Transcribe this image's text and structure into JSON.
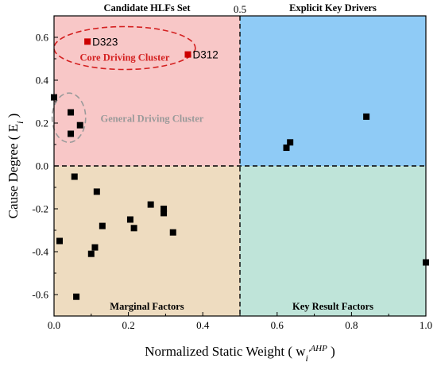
{
  "chart_data": {
    "type": "scatter",
    "xlabel": "Normalized Static Weight ( w",
    "xlabel_sub": "i",
    "xlabel_prime": "'",
    "xlabel_sup": "AHP",
    "xlabel_close": " )",
    "ylabel": "Cause Degree ( E",
    "ylabel_sub": "i",
    "ylabel_close": " )",
    "xlim": [
      0,
      1
    ],
    "ylim": [
      -0.7,
      0.7
    ],
    "x_ticks": [
      0,
      0.2,
      0.4,
      0.6,
      0.8,
      1
    ],
    "x_tick_labels": [
      "0.0",
      "0.2",
      "0.4",
      "0.6",
      "0.8",
      "1.0"
    ],
    "y_ticks": [
      -0.6,
      -0.4,
      -0.2,
      0,
      0.2,
      0.4,
      0.6
    ],
    "y_tick_labels": [
      "-0.6",
      "-0.4",
      "-0.2",
      "0.0",
      "0.2",
      "0.4",
      "0.6"
    ],
    "threshold_x": 0.5,
    "threshold_x_label": "0.5",
    "threshold_y": 0,
    "quadrants": [
      {
        "name": "top-left",
        "label": "Candidate HLFs Set",
        "label_position": "top",
        "color": "#f8c7c7"
      },
      {
        "name": "top-right",
        "label": "Explicit Key Drivers",
        "label_position": "top",
        "color": "#8fcbf6"
      },
      {
        "name": "bottom-left",
        "label": "Marginal Factors",
        "label_position": "bottom",
        "color": "#eedcc0"
      },
      {
        "name": "bottom-right",
        "label": "Key Result Factors",
        "label_position": "bottom",
        "color": "#bfe4d9"
      }
    ],
    "points": [
      {
        "x": 0.09,
        "y": 0.58,
        "label": "D323",
        "color": "#cc0000"
      },
      {
        "x": 0.36,
        "y": 0.52,
        "label": "D312",
        "color": "#cc0000"
      },
      {
        "x": 0.0,
        "y": 0.32
      },
      {
        "x": 0.045,
        "y": 0.25
      },
      {
        "x": 0.07,
        "y": 0.19
      },
      {
        "x": 0.045,
        "y": 0.15
      },
      {
        "x": 0.625,
        "y": 0.085
      },
      {
        "x": 0.635,
        "y": 0.11
      },
      {
        "x": 0.84,
        "y": 0.23
      },
      {
        "x": 0.055,
        "y": -0.05
      },
      {
        "x": 0.115,
        "y": -0.12
      },
      {
        "x": 0.26,
        "y": -0.18
      },
      {
        "x": 0.295,
        "y": -0.2
      },
      {
        "x": 0.295,
        "y": -0.22
      },
      {
        "x": 0.205,
        "y": -0.25
      },
      {
        "x": 0.13,
        "y": -0.28
      },
      {
        "x": 0.215,
        "y": -0.29
      },
      {
        "x": 0.32,
        "y": -0.31
      },
      {
        "x": 0.015,
        "y": -0.35
      },
      {
        "x": 0.11,
        "y": -0.38
      },
      {
        "x": 0.1,
        "y": -0.41
      },
      {
        "x": 0.06,
        "y": -0.61
      },
      {
        "x": 1.0,
        "y": -0.45
      }
    ],
    "clusters": [
      {
        "label": "Core Driving Cluster",
        "color": "#d42020",
        "cx": 0.19,
        "cy": 0.55,
        "rx": 0.19,
        "ry": 0.1
      },
      {
        "label": "General Driving Cluster",
        "color": "#9a9a9a",
        "cx": 0.04,
        "cy": 0.225,
        "rx": 0.045,
        "ry": 0.115
      }
    ]
  }
}
